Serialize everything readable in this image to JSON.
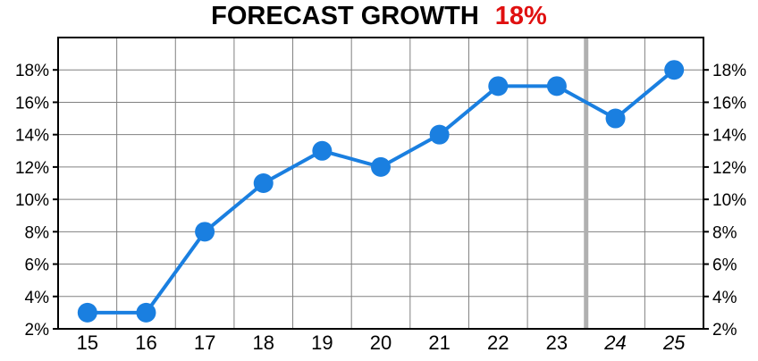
{
  "title": {
    "text": "FORECAST GROWTH",
    "value": "18%",
    "value_color": "#e01010"
  },
  "chart_data": {
    "type": "line",
    "categories": [
      "15",
      "16",
      "17",
      "18",
      "19",
      "20",
      "21",
      "22",
      "23",
      "24",
      "25"
    ],
    "estimate_categories": [
      "24",
      "25"
    ],
    "series": [
      {
        "values": [
          3,
          3,
          8,
          11,
          13,
          12,
          14,
          17,
          17,
          15,
          18
        ],
        "color": "#1a7fe0"
      }
    ],
    "ylim": [
      2,
      20
    ],
    "yticks": [
      2,
      4,
      6,
      8,
      10,
      12,
      14,
      16,
      18
    ],
    "y_tick_format": "%",
    "y_axis_both_sides": true,
    "grid": true,
    "legend": "none",
    "grid_color": "#808080",
    "divider_color": "#b0b0b0"
  }
}
